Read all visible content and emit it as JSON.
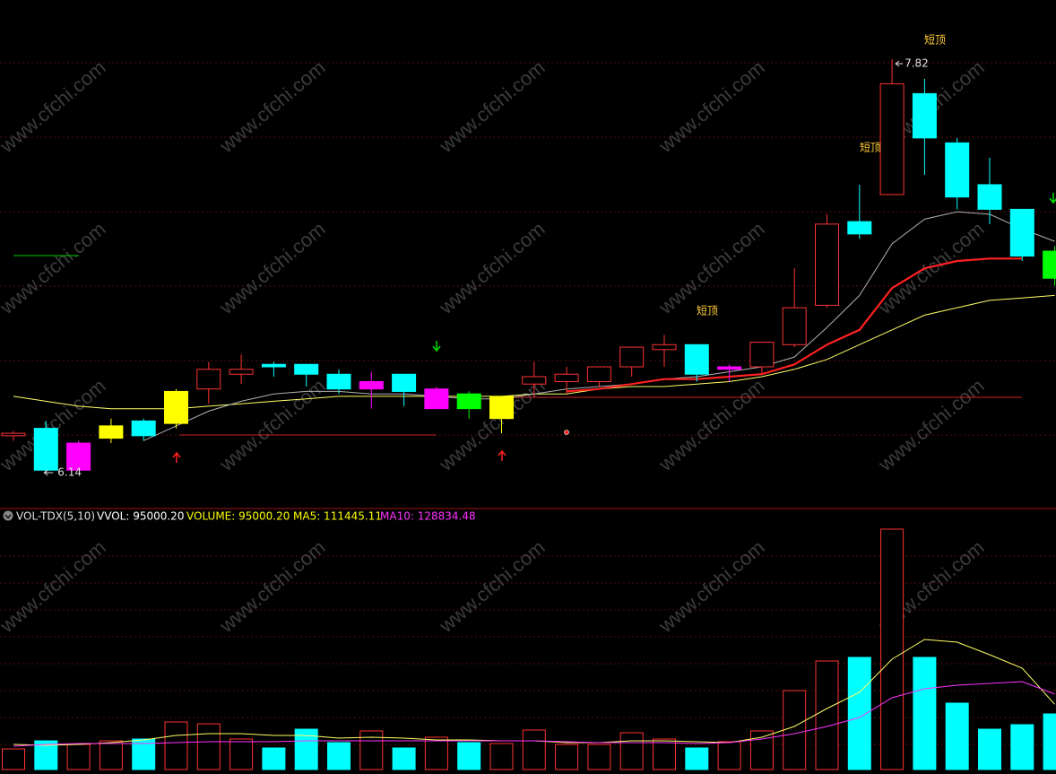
{
  "chart_data": {
    "type": "candlestick",
    "watermark": "www.cfchi.com",
    "open": [
      6.29,
      6.32,
      6.26,
      6.28,
      6.29,
      6.34,
      6.48,
      6.54,
      6.58,
      6.58,
      6.54,
      6.51,
      6.54,
      6.48,
      6.46,
      6.45,
      6.5,
      6.51,
      6.51,
      6.57,
      6.64,
      6.66,
      6.57,
      6.57,
      6.66,
      6.82,
      7.16,
      7.27,
      7.68,
      7.48,
      7.31,
      7.21,
      7.04
    ],
    "high": [
      6.31,
      6.35,
      6.27,
      6.36,
      6.36,
      6.48,
      6.59,
      6.62,
      6.59,
      6.58,
      6.56,
      6.55,
      6.54,
      6.49,
      6.47,
      6.45,
      6.59,
      6.57,
      6.57,
      6.65,
      6.7,
      6.66,
      6.58,
      6.67,
      6.97,
      7.19,
      7.31,
      7.82,
      7.74,
      7.5,
      7.42,
      7.21,
      7.06
    ],
    "low": [
      6.27,
      6.14,
      6.15,
      6.26,
      6.27,
      6.32,
      6.42,
      6.5,
      6.53,
      6.49,
      6.46,
      6.4,
      6.41,
      6.4,
      6.36,
      6.3,
      6.45,
      6.46,
      6.49,
      6.53,
      6.57,
      6.51,
      6.51,
      6.54,
      6.65,
      6.81,
      7.09,
      7.27,
      7.35,
      7.21,
      7.15,
      7.0,
      6.9
    ],
    "close": [
      6.3,
      6.15,
      6.15,
      6.33,
      6.35,
      6.47,
      6.56,
      6.56,
      6.57,
      6.54,
      6.48,
      6.48,
      6.47,
      6.4,
      6.4,
      6.36,
      6.53,
      6.54,
      6.57,
      6.65,
      6.66,
      6.54,
      6.56,
      6.67,
      6.81,
      7.15,
      7.11,
      7.72,
      7.5,
      7.26,
      7.21,
      7.02,
      6.93
    ],
    "colors": [
      "#ff3232",
      "#00ffff",
      "#ff00ff",
      "#ffff00",
      "#00ffff",
      "#ffff00",
      "#ff3232",
      "#ff3232",
      "#00ffff",
      "#00ffff",
      "#00ffff",
      "#ff00ff",
      "#00ffff",
      "#ff00ff",
      "#00ff00",
      "#ffff00",
      "#ff3232",
      "#ff3232",
      "#ff3232",
      "#ff3232",
      "#ff3232",
      "#00ffff",
      "#ff00ff",
      "#ff3232",
      "#ff3232",
      "#ff3232",
      "#00ffff",
      "#ff3232",
      "#00ffff",
      "#00ffff",
      "#00ffff",
      "#00ffff",
      "#00ff00"
    ],
    "filled": [
      false,
      true,
      true,
      true,
      true,
      true,
      false,
      false,
      true,
      true,
      true,
      true,
      true,
      true,
      true,
      true,
      false,
      false,
      false,
      false,
      false,
      true,
      true,
      false,
      false,
      false,
      true,
      false,
      true,
      true,
      true,
      true,
      true
    ],
    "series": [
      {
        "color": "#ffff66",
        "values": [
          6.45,
          6.43,
          6.41,
          6.4,
          6.4,
          6.4,
          6.41,
          6.42,
          6.43,
          6.44,
          6.45,
          6.45,
          6.45,
          6.45,
          6.45,
          6.45,
          6.46,
          6.46,
          6.48,
          6.49,
          6.49,
          6.5,
          6.51,
          6.53,
          6.56,
          6.6,
          6.66,
          6.72,
          6.78,
          6.81,
          6.84,
          6.85,
          6.86
        ]
      },
      {
        "color": "#b0b0b0",
        "values": [
          null,
          null,
          null,
          null,
          6.27,
          6.33,
          6.39,
          6.43,
          6.46,
          6.47,
          6.47,
          6.46,
          6.46,
          6.45,
          6.44,
          6.44,
          6.46,
          6.48,
          6.49,
          6.5,
          6.52,
          6.53,
          6.55,
          6.57,
          6.61,
          6.73,
          6.86,
          7.07,
          7.17,
          7.2,
          7.19,
          7.13,
          7.08
        ]
      },
      {
        "color": "#ff2020",
        "values": [
          null,
          null,
          null,
          null,
          null,
          null,
          null,
          null,
          null,
          null,
          null,
          null,
          null,
          null,
          null,
          null,
          null,
          6.47,
          6.48,
          6.5,
          6.52,
          6.52,
          6.53,
          6.54,
          6.58,
          6.66,
          6.72,
          6.89,
          6.97,
          7.0,
          7.01,
          7.01,
          null
        ]
      }
    ],
    "annotations": [
      "短顶",
      "短顶",
      "短顶"
    ],
    "indicator_header": [
      "VOL-TDX(5,10)",
      "VVOL: 95000.20",
      "VOLUME: 95000.20",
      "MA5: 111445.11",
      "MA10: 128834.48"
    ],
    "volume": [
      35200,
      49000,
      42900,
      49000,
      52100,
      81200,
      78100,
      52100,
      36800,
      68900,
      46000,
      65900,
      36800,
      55200,
      46000,
      44400,
      67400,
      42900,
      42900,
      62800,
      52100,
      36800,
      47500,
      65900,
      134800,
      185400,
      191500,
      410600,
      191500,
      113400,
      68900,
      76600,
      95000.2
    ],
    "volume_colors": [
      "#ff3232",
      "#00ffff",
      "#ff3232",
      "#ff3232",
      "#00ffff",
      "#ff3232",
      "#ff3232",
      "#ff3232",
      "#00ffff",
      "#00ffff",
      "#00ffff",
      "#ff3232",
      "#00ffff",
      "#ff3232",
      "#00ffff",
      "#ff3232",
      "#ff3232",
      "#ff3232",
      "#ff3232",
      "#ff3232",
      "#ff3232",
      "#00ffff",
      "#ff3232",
      "#ff3232",
      "#ff3232",
      "#ff3232",
      "#00ffff",
      "#ff3232",
      "#00ffff",
      "#00ffff",
      "#00ffff",
      "#00ffff",
      "#00ffff"
    ],
    "volume_filled": [
      false,
      true,
      false,
      false,
      true,
      false,
      false,
      false,
      true,
      true,
      true,
      false,
      true,
      false,
      true,
      false,
      false,
      false,
      false,
      false,
      false,
      true,
      false,
      false,
      false,
      false,
      true,
      false,
      true,
      true,
      true,
      true,
      true
    ],
    "volume_series": [
      {
        "color": "#ffff66",
        "values": [
          42900,
          41400,
          42900,
          46000,
          50600,
          58200,
          61300,
          61300,
          58200,
          58200,
          53600,
          55200,
          53600,
          50600,
          50600,
          49000,
          49000,
          46000,
          46000,
          49000,
          49000,
          47500,
          46000,
          55200,
          73500,
          104200,
          131800,
          188400,
          222100,
          217500,
          196100,
          173100,
          111445.11
        ]
      },
      {
        "color": "#ff33ff",
        "values": [
          39800,
          42900,
          44400,
          44400,
          44400,
          46000,
          47500,
          47500,
          47500,
          49000,
          49000,
          49000,
          49000,
          49000,
          49000,
          49000,
          49000,
          47500,
          46000,
          46000,
          46000,
          44400,
          46000,
          52100,
          61300,
          73500,
          88800,
          122600,
          137900,
          144000,
          147100,
          150100,
          128834.48
        ]
      }
    ]
  }
}
